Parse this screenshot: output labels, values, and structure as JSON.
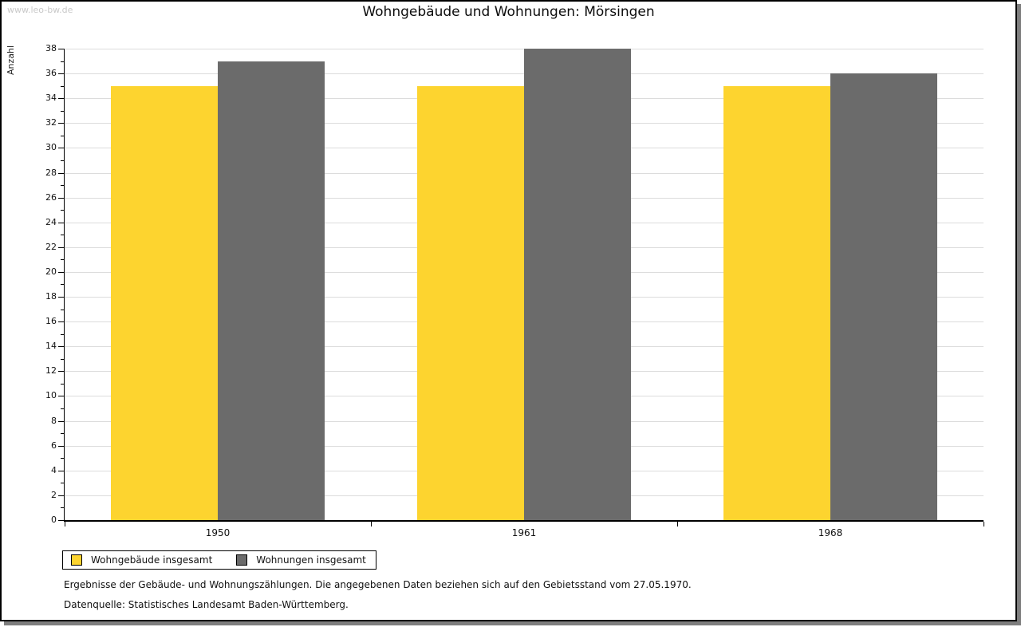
{
  "watermark": "www.leo-bw.de",
  "chart_data": {
    "type": "bar",
    "title": "Wohngebäude und Wohnungen: Mörsingen",
    "ylabel": "Anzahl",
    "xlabel": "",
    "categories": [
      "1950",
      "1961",
      "1968"
    ],
    "series": [
      {
        "name": "Wohngebäude insgesamt",
        "color": "#FDD42F",
        "values": [
          35,
          35,
          35
        ]
      },
      {
        "name": "Wohnungen insgesamt",
        "color": "#6B6B6B",
        "values": [
          37,
          38,
          36
        ]
      }
    ],
    "ylim": [
      0,
      38
    ],
    "ytick_step": 2,
    "minor_tick_step": 1,
    "grid": true,
    "gridline_color": "#dcdcdc",
    "legend_position": "bottom-left"
  },
  "footnotes": {
    "line1": "Ergebnisse der Gebäude- und Wohnungszählungen. Die angegebenen Daten beziehen sich auf den Gebietsstand vom 27.05.1970.",
    "line2": "Datenquelle: Statistisches Landesamt Baden-Württemberg."
  }
}
